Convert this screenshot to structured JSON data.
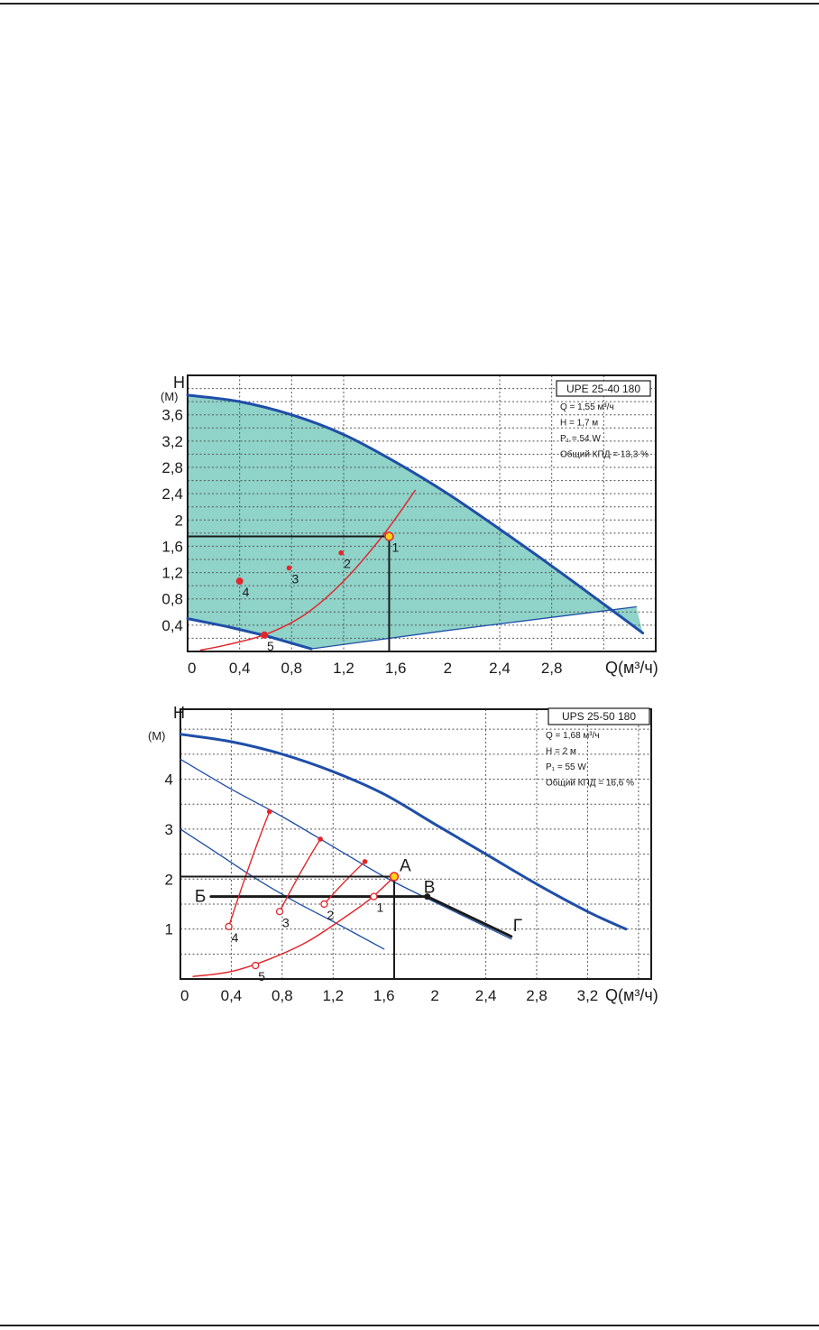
{
  "chart_data": [
    {
      "type": "line",
      "model": "UPE 25-40 180",
      "ylabel": "H",
      "ylabel_unit": "(М)",
      "xlabel": "Q(м³/ч)",
      "xlim": [
        0,
        3.6
      ],
      "ylim": [
        0,
        4.2
      ],
      "x_ticks": [
        "0",
        "0,4",
        "0,8",
        "1,2",
        "1,6",
        "2",
        "2,4",
        "2,8"
      ],
      "x_tick_values": [
        0,
        0.4,
        0.8,
        1.2,
        1.6,
        2.0,
        2.4,
        2.8
      ],
      "y_ticks": [
        "0,4",
        "0,8",
        "1,2",
        "1,6",
        "2",
        "2,4",
        "2,8",
        "3,2",
        "3,6"
      ],
      "y_tick_values": [
        0.4,
        0.8,
        1.2,
        1.6,
        2.0,
        2.4,
        2.8,
        3.2,
        3.6
      ],
      "grid": true,
      "info": [
        "Q = 1,55 м³/ч",
        "H = 1,7 м",
        "P₁ = 54 W",
        "Общий КПД = 13,3 %"
      ],
      "colors": {
        "pump_curve": "#1f4ea8",
        "region": "#8fd3c9",
        "system_curve": "#e3262b",
        "point": "#e3262b",
        "operating_point": "#ffd21a",
        "reference": "#1a1a1a"
      },
      "series": [
        {
          "role": "max-curve",
          "x": [
            0,
            0.4,
            0.8,
            1.2,
            1.6,
            2.0,
            2.4,
            2.8,
            3.2,
            3.5
          ],
          "y": [
            3.9,
            3.8,
            3.6,
            3.3,
            2.88,
            2.4,
            1.86,
            1.3,
            0.72,
            0.28
          ]
        },
        {
          "role": "min-curve",
          "x": [
            0,
            0.3,
            0.6,
            0.95
          ],
          "y": [
            0.5,
            0.38,
            0.24,
            0.04
          ]
        },
        {
          "role": "min-right-curve",
          "x": [
            0.95,
            2.0,
            3.45
          ],
          "y": [
            0.04,
            0.32,
            0.68
          ]
        },
        {
          "role": "system-curve",
          "x": [
            0.1,
            0.3,
            0.6,
            0.9,
            1.2,
            1.5,
            1.75
          ],
          "y": [
            0.02,
            0.1,
            0.26,
            0.56,
            1.07,
            1.76,
            2.45
          ]
        }
      ],
      "reference_point": {
        "x": 1.55,
        "y": 1.75
      },
      "points": [
        {
          "label": "1",
          "x": 1.55,
          "y": 1.75,
          "kind": "operating"
        },
        {
          "label": "2",
          "x": 1.18,
          "y": 1.5,
          "kind": "dot"
        },
        {
          "label": "3",
          "x": 0.78,
          "y": 1.27,
          "kind": "dot"
        },
        {
          "label": "4",
          "x": 0.4,
          "y": 1.07,
          "kind": "dot"
        },
        {
          "label": "5",
          "x": 0.59,
          "y": 0.25,
          "kind": "dot"
        }
      ]
    },
    {
      "type": "line",
      "model": "UPS 25-50 180",
      "ylabel": "H",
      "ylabel_unit": "(М)",
      "xlabel": "Q(м³/ч)",
      "xlim": [
        0,
        3.7
      ],
      "ylim": [
        0,
        5.4
      ],
      "x_ticks": [
        "0",
        "0,4",
        "0,8",
        "1,2",
        "1,6",
        "2",
        "2,4",
        "2,8",
        "3,2"
      ],
      "x_tick_values": [
        0,
        0.4,
        0.8,
        1.2,
        1.6,
        2.0,
        2.4,
        2.8,
        3.2
      ],
      "y_ticks": [
        "1",
        "2",
        "3",
        "4"
      ],
      "y_tick_values": [
        1,
        2,
        3,
        4
      ],
      "grid": true,
      "info": [
        "Q = 1,68 м³/ч",
        "H = 2 м",
        "P₁ = 55 W",
        "Общий КПД = 16,6 %"
      ],
      "colors": {
        "pump_curve": "#1f4ea8",
        "system_curve": "#e3262b",
        "point": "#e3262b",
        "operating_point": "#ffd21a",
        "reference": "#1a1a1a"
      },
      "series": [
        {
          "role": "speed-3",
          "x": [
            0,
            0.4,
            0.8,
            1.2,
            1.6,
            2.0,
            2.4,
            2.8,
            3.2,
            3.5
          ],
          "y": [
            4.9,
            4.75,
            4.5,
            4.15,
            3.7,
            3.1,
            2.5,
            1.9,
            1.35,
            1.0
          ]
        },
        {
          "role": "speed-2",
          "x": [
            0,
            0.4,
            0.8,
            1.2,
            1.6,
            1.95,
            2.6
          ],
          "y": [
            4.4,
            3.8,
            3.25,
            2.65,
            2.05,
            1.6,
            0.8
          ]
        },
        {
          "role": "speed-1",
          "x": [
            0,
            0.3,
            0.6,
            0.9,
            1.2,
            1.6
          ],
          "y": [
            3.0,
            2.5,
            2.0,
            1.55,
            1.15,
            0.6
          ]
        },
        {
          "role": "system-curve",
          "x": [
            0.1,
            0.4,
            0.7,
            1.0,
            1.3,
            1.5,
            1.68
          ],
          "y": [
            0.05,
            0.15,
            0.4,
            0.75,
            1.25,
            1.62,
            2.05
          ]
        },
        {
          "role": "line-BV",
          "x": [
            0.24,
            1.94
          ],
          "y": [
            1.65,
            1.65
          ]
        },
        {
          "role": "line-VG",
          "x": [
            1.94,
            2.6
          ],
          "y": [
            1.65,
            0.85
          ]
        }
      ],
      "reference_point": {
        "x": 1.68,
        "y": 2.05
      },
      "branches": [
        {
          "from": {
            "x": 0.38,
            "y": 1.05
          },
          "to": {
            "x": 0.7,
            "y": 3.35
          }
        },
        {
          "from": {
            "x": 0.78,
            "y": 1.35
          },
          "to": {
            "x": 1.1,
            "y": 2.8
          }
        },
        {
          "from": {
            "x": 1.13,
            "y": 1.5
          },
          "to": {
            "x": 1.45,
            "y": 2.35
          }
        }
      ],
      "points": [
        {
          "label": "1",
          "x": 1.52,
          "y": 1.65,
          "kind": "open"
        },
        {
          "label": "2",
          "x": 1.13,
          "y": 1.5,
          "kind": "open"
        },
        {
          "label": "3",
          "x": 0.78,
          "y": 1.35,
          "kind": "open"
        },
        {
          "label": "4",
          "x": 0.38,
          "y": 1.05,
          "kind": "open"
        },
        {
          "label": "5",
          "x": 0.59,
          "y": 0.27,
          "kind": "open"
        },
        {
          "label": "",
          "x": 0.7,
          "y": 3.35,
          "kind": "dot"
        },
        {
          "label": "",
          "x": 1.1,
          "y": 2.8,
          "kind": "dot"
        },
        {
          "label": "",
          "x": 1.45,
          "y": 2.35,
          "kind": "dot"
        },
        {
          "label": "",
          "x": 1.94,
          "y": 1.65,
          "kind": "black"
        }
      ],
      "markers": [
        {
          "label": "А",
          "x": 1.68,
          "y": 2.05
        },
        {
          "label": "В",
          "x": 1.94,
          "y": 1.65
        },
        {
          "label": "Б",
          "x": 0.24,
          "y": 1.65
        },
        {
          "label": "Г",
          "x": 2.6,
          "y": 0.85
        }
      ]
    }
  ]
}
